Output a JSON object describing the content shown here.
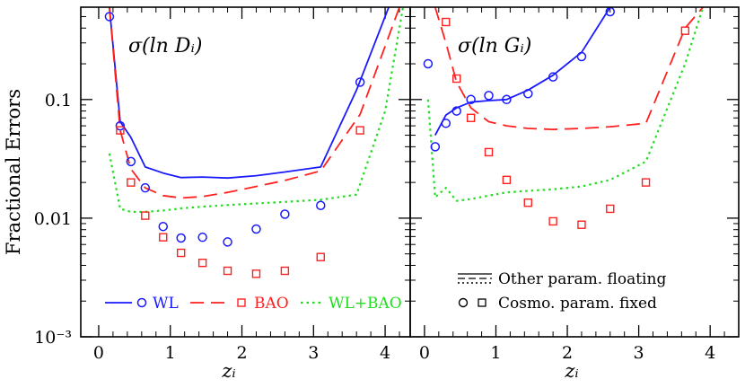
{
  "chart_data": [
    {
      "type": "line",
      "panel_label": "σ(ln Dᵢ)",
      "xlabel": "zᵢ",
      "ylabel": "Fractional Errors",
      "xlim": [
        -0.25,
        4.35
      ],
      "ylim": [
        0.001,
        0.6
      ],
      "yscale": "log",
      "x_ticks": [
        0,
        1,
        2,
        3,
        4
      ],
      "y_ticks": [
        {
          "value": 0.001,
          "label": "10⁻³"
        },
        {
          "value": 0.01,
          "label": "0.01"
        },
        {
          "value": 0.1,
          "label": "0.1"
        }
      ],
      "series": [
        {
          "name": "WL",
          "style": "solid",
          "color": "#1a1aff",
          "x": [
            0.15,
            0.3,
            0.45,
            0.65,
            0.9,
            1.15,
            1.45,
            1.8,
            2.2,
            2.6,
            3.1,
            3.6,
            4.05
          ],
          "y": [
            0.6,
            0.065,
            0.048,
            0.027,
            0.024,
            0.022,
            0.0222,
            0.0218,
            0.0228,
            0.0245,
            0.027,
            0.12,
            0.6
          ]
        },
        {
          "name": "BAO",
          "style": "dashed",
          "color": "#ff2020",
          "x": [
            0.15,
            0.3,
            0.45,
            0.65,
            0.9,
            1.15,
            1.45,
            1.8,
            2.2,
            2.6,
            3.1,
            3.65,
            4.2
          ],
          "y": [
            0.6,
            0.055,
            0.026,
            0.018,
            0.0155,
            0.0148,
            0.0152,
            0.0165,
            0.0185,
            0.0208,
            0.025,
            0.075,
            0.6
          ]
        },
        {
          "name": "WL+BAO",
          "style": "dotted",
          "color": "#22dd22",
          "x": [
            0.15,
            0.3,
            0.45,
            0.65,
            0.9,
            1.15,
            1.45,
            1.8,
            2.2,
            2.6,
            3.1,
            3.6,
            4.0,
            4.25
          ],
          "y": [
            0.035,
            0.012,
            0.0113,
            0.0113,
            0.0116,
            0.0121,
            0.0125,
            0.0129,
            0.0133,
            0.0137,
            0.0143,
            0.0158,
            0.08,
            0.6
          ]
        }
      ],
      "points": [
        {
          "name": "WL",
          "marker": "circle",
          "color": "#1a1aff",
          "x": [
            0.15,
            0.3,
            0.45,
            0.65,
            0.9,
            1.15,
            1.45,
            1.8,
            2.2,
            2.6,
            3.1,
            3.65
          ],
          "y": [
            0.5,
            0.06,
            0.03,
            0.018,
            0.0085,
            0.0068,
            0.0069,
            0.0063,
            0.0081,
            0.0108,
            0.0128,
            0.14
          ]
        },
        {
          "name": "BAO",
          "marker": "square",
          "color": "#ff2020",
          "x": [
            0.3,
            0.45,
            0.65,
            0.9,
            1.15,
            1.45,
            1.8,
            2.2,
            2.6,
            3.1,
            3.65
          ],
          "y": [
            0.055,
            0.02,
            0.0105,
            0.0069,
            0.0051,
            0.0042,
            0.0036,
            0.0034,
            0.0036,
            0.0047,
            0.055
          ]
        }
      ],
      "legend": [
        {
          "label": "WL",
          "line": "solid",
          "marker": "circle",
          "color": "#1a1aff"
        },
        {
          "label": "BAO",
          "line": "dashed",
          "marker": "square",
          "color": "#ff2020"
        },
        {
          "label": "WL+BAO",
          "line": "dotted",
          "color": "#22dd22"
        }
      ]
    },
    {
      "type": "line",
      "panel_label": "σ(ln Gᵢ)",
      "xlabel": "zᵢ",
      "xlim": [
        -0.2,
        4.4
      ],
      "ylim": [
        0.001,
        0.6
      ],
      "yscale": "log",
      "x_ticks": [
        0,
        1,
        2,
        3,
        4
      ],
      "series": [
        {
          "name": "WL",
          "style": "solid",
          "color": "#1a1aff",
          "x": [
            0.15,
            0.3,
            0.45,
            0.65,
            0.9,
            1.15,
            1.45,
            1.8,
            2.2,
            2.6
          ],
          "y": [
            0.05,
            0.074,
            0.085,
            0.095,
            0.098,
            0.1,
            0.12,
            0.16,
            0.25,
            0.6
          ]
        },
        {
          "name": "BAO",
          "style": "dashed",
          "color": "#ff2020",
          "x": [
            0.15,
            0.3,
            0.45,
            0.65,
            0.9,
            1.15,
            1.45,
            1.8,
            2.2,
            2.6,
            3.1,
            3.65,
            3.9
          ],
          "y": [
            0.6,
            0.3,
            0.14,
            0.085,
            0.065,
            0.06,
            0.057,
            0.056,
            0.057,
            0.059,
            0.063,
            0.4,
            0.6
          ]
        },
        {
          "name": "WL+BAO",
          "style": "dotted",
          "color": "#22dd22",
          "x": [
            0.05,
            0.15,
            0.3,
            0.45,
            0.65,
            0.9,
            1.15,
            1.45,
            1.8,
            2.2,
            2.6,
            3.1,
            3.65,
            3.9
          ],
          "y": [
            0.1,
            0.015,
            0.018,
            0.014,
            0.0145,
            0.0155,
            0.0165,
            0.017,
            0.0175,
            0.0185,
            0.021,
            0.03,
            0.2,
            0.6
          ]
        }
      ],
      "points": [
        {
          "name": "WL",
          "marker": "circle",
          "color": "#1a1aff",
          "x": [
            0.05,
            0.15,
            0.3,
            0.45,
            0.65,
            0.9,
            1.15,
            1.45,
            1.8,
            2.2,
            2.6
          ],
          "y": [
            0.2,
            0.04,
            0.063,
            0.08,
            0.1,
            0.108,
            0.1,
            0.112,
            0.155,
            0.23,
            0.55
          ]
        },
        {
          "name": "BAO",
          "marker": "square",
          "color": "#ff2020",
          "x": [
            0.3,
            0.45,
            0.65,
            0.9,
            1.15,
            1.45,
            1.8,
            2.2,
            2.6,
            3.1,
            3.65
          ],
          "y": [
            0.45,
            0.15,
            0.07,
            0.036,
            0.021,
            0.0135,
            0.0094,
            0.0088,
            0.012,
            0.02,
            0.38
          ]
        }
      ],
      "legend": [
        {
          "label": "Other param. floating",
          "symbol": "line-styles"
        },
        {
          "label": "Cosmo. param. fixed",
          "symbol": "markers"
        }
      ]
    }
  ]
}
